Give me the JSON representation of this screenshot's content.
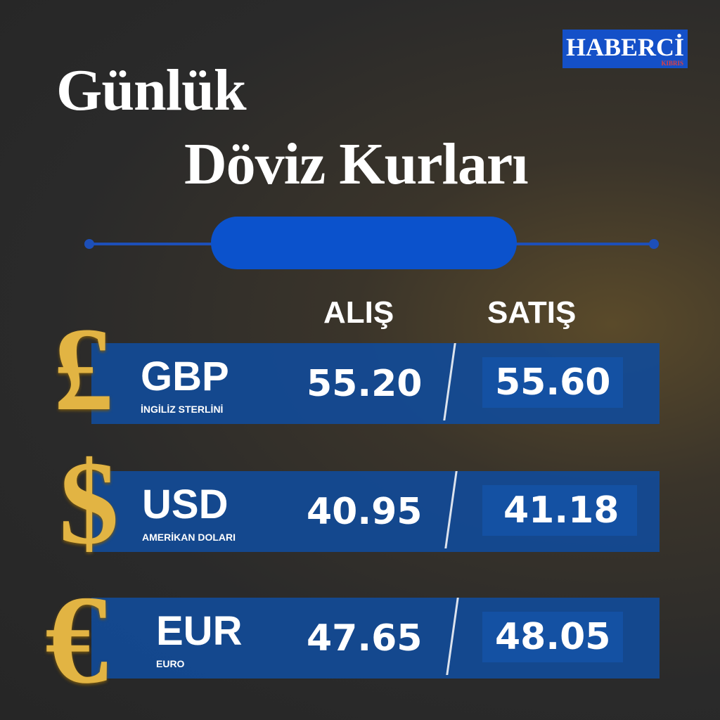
{
  "logo": {
    "name": "HABERCİ",
    "sub": "KIBRIS"
  },
  "title": {
    "line1": "Günlük",
    "line2": "Döviz Kurları"
  },
  "headers": {
    "buy": "ALIŞ",
    "sell": "SATIŞ"
  },
  "rows": [
    {
      "symbol": "£",
      "code": "GBP",
      "name": "İNGİLİZ STERLİNİ",
      "buy": "55.20",
      "sell": "55.60"
    },
    {
      "symbol": "$",
      "code": "USD",
      "name": "AMERİKAN DOLARI",
      "buy": "40.95",
      "sell": "41.18"
    },
    {
      "symbol": "€",
      "code": "EUR",
      "name": "EURO",
      "buy": "47.65",
      "sell": "48.05"
    }
  ],
  "colors": {
    "accent": "#0b52cc",
    "band": "#124a96",
    "gold": "#e2b443"
  }
}
